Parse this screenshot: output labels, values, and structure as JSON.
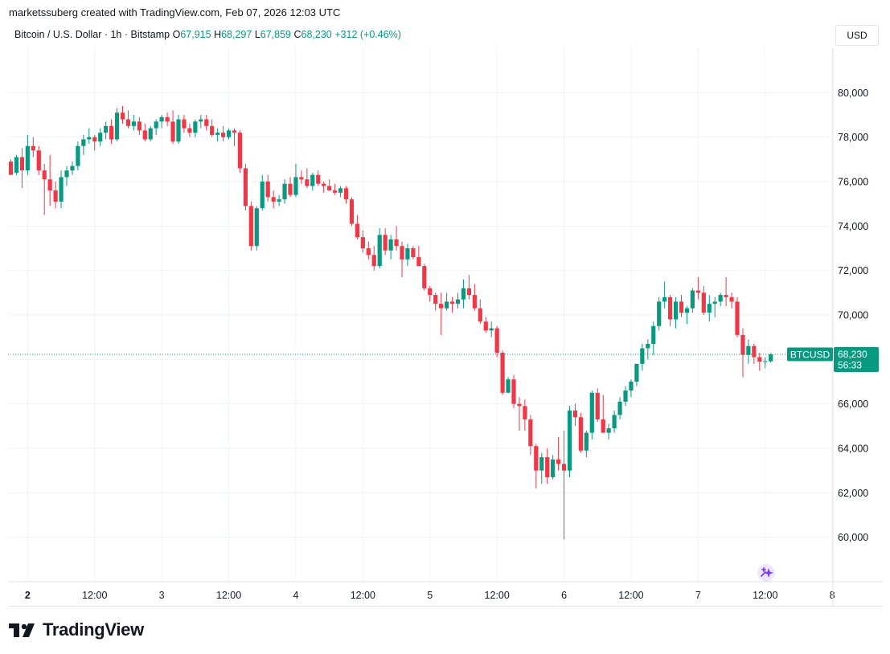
{
  "header": {
    "credit": "marketssuberg created with TradingView.com, Feb 07, 2026 12:03 UTC",
    "symbol": "Bitcoin / U.S. Dollar · 1h · Bitstamp",
    "o_label": "O",
    "o_value": "67,915",
    "h_label": "H",
    "h_value": "68,297",
    "l_label": "L",
    "l_value": "67,859",
    "c_label": "C",
    "c_value": "68,230",
    "change": "+312 (+0.46%)",
    "currency": "USD"
  },
  "price_badge": {
    "ticker": "BTCUSD",
    "price": "68,230",
    "countdown": "56:33"
  },
  "brand": {
    "name": "TradingView"
  },
  "colors": {
    "up": "#089981",
    "down": "#f23645",
    "grid": "#f0f3fa",
    "text": "#131722",
    "badge": "#089981"
  },
  "chart_data": {
    "type": "candlestick",
    "symbol": "BTCUSD",
    "interval": "1h",
    "ylim": [
      58000,
      82000
    ],
    "y_ticks": [
      60000,
      62000,
      64000,
      66000,
      68000,
      70000,
      72000,
      74000,
      76000,
      78000,
      80000
    ],
    "y_tick_labels": [
      "60,000",
      "62,000",
      "64,000",
      "66,000",
      "68,000",
      "70,000",
      "72,000",
      "74,000",
      "76,000",
      "78,000",
      "80,000"
    ],
    "x_ticks": [
      {
        "label": "2",
        "bold": true,
        "index": 3
      },
      {
        "label": "12:00",
        "bold": false,
        "index": 15
      },
      {
        "label": "3",
        "bold": false,
        "index": 27
      },
      {
        "label": "12:00",
        "bold": false,
        "index": 39
      },
      {
        "label": "4",
        "bold": false,
        "index": 51
      },
      {
        "label": "12:00",
        "bold": false,
        "index": 63
      },
      {
        "label": "5",
        "bold": false,
        "index": 75
      },
      {
        "label": "12:00",
        "bold": false,
        "index": 87
      },
      {
        "label": "6",
        "bold": false,
        "index": 99
      },
      {
        "label": "12:00",
        "bold": false,
        "index": 111
      },
      {
        "label": "7",
        "bold": false,
        "index": 123
      },
      {
        "label": "12:00",
        "bold": false,
        "index": 135
      },
      {
        "label": "8",
        "bold": false,
        "index": 147
      }
    ],
    "last_price": 68230,
    "grid": true,
    "candles": [
      [
        76900,
        77000,
        76400,
        76300
      ],
      [
        76400,
        77200,
        76300,
        77100
      ],
      [
        77100,
        77500,
        75700,
        76500
      ],
      [
        76500,
        78100,
        76300,
        77600
      ],
      [
        77600,
        78000,
        77100,
        77400
      ],
      [
        77400,
        77600,
        76300,
        76500
      ],
      [
        76500,
        76800,
        74500,
        76100
      ],
      [
        76100,
        77200,
        74900,
        75600
      ],
      [
        75600,
        76000,
        74800,
        75100
      ],
      [
        75100,
        76500,
        74800,
        76200
      ],
      [
        76200,
        76700,
        75800,
        76500
      ],
      [
        76500,
        76900,
        76300,
        76700
      ],
      [
        76700,
        77800,
        76500,
        77600
      ],
      [
        77600,
        78100,
        77200,
        77900
      ],
      [
        77900,
        78400,
        77700,
        78000
      ],
      [
        78000,
        78100,
        77400,
        77800
      ],
      [
        77800,
        78400,
        77600,
        78200
      ],
      [
        78200,
        78700,
        77900,
        78500
      ],
      [
        78500,
        78800,
        77700,
        77900
      ],
      [
        77900,
        79300,
        77800,
        79100
      ],
      [
        79100,
        79400,
        78600,
        78800
      ],
      [
        78800,
        79200,
        78400,
        78500
      ],
      [
        78500,
        79000,
        78300,
        78700
      ],
      [
        78700,
        78900,
        78100,
        78300
      ],
      [
        78300,
        78600,
        77800,
        77900
      ],
      [
        77900,
        78500,
        77800,
        78400
      ],
      [
        78400,
        78800,
        78100,
        78700
      ],
      [
        78700,
        79000,
        78400,
        78900
      ],
      [
        78900,
        79100,
        78500,
        78700
      ],
      [
        78700,
        79200,
        77700,
        77800
      ],
      [
        77800,
        79000,
        77700,
        78800
      ],
      [
        78800,
        79000,
        78200,
        78400
      ],
      [
        78400,
        78600,
        78000,
        78200
      ],
      [
        78200,
        78800,
        78000,
        78700
      ],
      [
        78700,
        79000,
        78400,
        78800
      ],
      [
        78800,
        79000,
        78300,
        78500
      ],
      [
        78500,
        78800,
        78000,
        78100
      ],
      [
        78100,
        78400,
        77800,
        78200
      ],
      [
        78200,
        78500,
        77800,
        78000
      ],
      [
        78000,
        78400,
        77900,
        78300
      ],
      [
        78300,
        78400,
        77600,
        78200
      ],
      [
        78200,
        78300,
        76400,
        76600
      ],
      [
        76600,
        76800,
        74700,
        74900
      ],
      [
        74900,
        75100,
        72900,
        73100
      ],
      [
        73100,
        74900,
        72900,
        74800
      ],
      [
        74800,
        76300,
        74700,
        76000
      ],
      [
        76000,
        76300,
        75100,
        75300
      ],
      [
        75300,
        75600,
        74800,
        75100
      ],
      [
        75100,
        75400,
        74900,
        75200
      ],
      [
        75200,
        76100,
        75000,
        75900
      ],
      [
        75900,
        76200,
        75300,
        75400
      ],
      [
        75400,
        76800,
        75300,
        76200
      ],
      [
        76200,
        76500,
        75900,
        76100
      ],
      [
        76100,
        76600,
        75700,
        75800
      ],
      [
        75800,
        76400,
        75600,
        76300
      ],
      [
        76300,
        76500,
        75800,
        75900
      ],
      [
        75900,
        76000,
        75500,
        75800
      ],
      [
        75800,
        76100,
        75600,
        75600
      ],
      [
        75600,
        75900,
        75400,
        75500
      ],
      [
        75500,
        75800,
        75300,
        75700
      ],
      [
        75700,
        75800,
        75000,
        75200
      ],
      [
        75200,
        75300,
        74000,
        74100
      ],
      [
        74100,
        74500,
        73400,
        73500
      ],
      [
        73500,
        73800,
        72800,
        73000
      ],
      [
        73000,
        73300,
        72500,
        72700
      ],
      [
        72700,
        73100,
        72000,
        72200
      ],
      [
        72200,
        73900,
        72100,
        73600
      ],
      [
        73600,
        73900,
        72700,
        72900
      ],
      [
        72900,
        73600,
        72500,
        73400
      ],
      [
        73400,
        74000,
        72900,
        73100
      ],
      [
        73100,
        73300,
        71700,
        72500
      ],
      [
        72500,
        73200,
        72200,
        73000
      ],
      [
        73000,
        73100,
        72500,
        72600
      ],
      [
        72600,
        73100,
        72300,
        72200
      ],
      [
        72200,
        72300,
        71100,
        71200
      ],
      [
        71200,
        71300,
        70600,
        70900
      ],
      [
        70900,
        71000,
        70200,
        70500
      ],
      [
        70500,
        71000,
        69100,
        70300
      ],
      [
        70300,
        71000,
        70200,
        70600
      ],
      [
        70600,
        70800,
        70100,
        70500
      ],
      [
        70500,
        71000,
        70300,
        70700
      ],
      [
        70700,
        71600,
        70300,
        71200
      ],
      [
        71200,
        71800,
        70700,
        70900
      ],
      [
        70900,
        71400,
        70200,
        70300
      ],
      [
        70300,
        70700,
        69600,
        69700
      ],
      [
        69700,
        69900,
        69200,
        69300
      ],
      [
        69300,
        69700,
        69000,
        69400
      ],
      [
        69400,
        69500,
        68100,
        68300
      ],
      [
        68300,
        68400,
        66400,
        66500
      ],
      [
        66500,
        67200,
        66500,
        67100
      ],
      [
        67100,
        67300,
        65800,
        66000
      ],
      [
        66000,
        66300,
        64800,
        65900
      ],
      [
        65900,
        66200,
        64800,
        65300
      ],
      [
        65300,
        65500,
        63700,
        64100
      ],
      [
        64100,
        64200,
        62200,
        63000
      ],
      [
        63000,
        63800,
        62400,
        63600
      ],
      [
        63600,
        64000,
        62400,
        62700
      ],
      [
        62700,
        63700,
        62600,
        63500
      ],
      [
        63500,
        64500,
        63000,
        63300
      ],
      [
        63300,
        64800,
        59900,
        63000
      ],
      [
        63000,
        65900,
        62700,
        65700
      ],
      [
        65700,
        66000,
        65000,
        65400
      ],
      [
        65400,
        65600,
        63800,
        63900
      ],
      [
        63900,
        64800,
        63600,
        64700
      ],
      [
        64700,
        66600,
        64400,
        66500
      ],
      [
        66500,
        66700,
        65200,
        65300
      ],
      [
        65300,
        66400,
        64800,
        64700
      ],
      [
        64700,
        65100,
        64400,
        64900
      ],
      [
        64900,
        65700,
        64700,
        65500
      ],
      [
        65500,
        66300,
        65300,
        66100
      ],
      [
        66100,
        66800,
        65900,
        66600
      ],
      [
        66600,
        67100,
        66300,
        67000
      ],
      [
        67000,
        67800,
        66800,
        67800
      ],
      [
        67800,
        68700,
        67500,
        68500
      ],
      [
        68500,
        68900,
        68000,
        68700
      ],
      [
        68700,
        69700,
        68200,
        69500
      ],
      [
        69500,
        70800,
        69300,
        70600
      ],
      [
        70600,
        71500,
        70300,
        70800
      ],
      [
        70800,
        70900,
        69500,
        69800
      ],
      [
        69800,
        70800,
        69400,
        70600
      ],
      [
        70600,
        70900,
        69900,
        70100
      ],
      [
        70100,
        70400,
        69600,
        70300
      ],
      [
        70300,
        71200,
        70100,
        71100
      ],
      [
        71100,
        71700,
        70700,
        71000
      ],
      [
        71000,
        71300,
        70000,
        70100
      ],
      [
        70100,
        70900,
        69700,
        70500
      ],
      [
        70500,
        70800,
        69900,
        70600
      ],
      [
        70600,
        71000,
        70400,
        70900
      ],
      [
        70900,
        71700,
        70400,
        70800
      ],
      [
        70800,
        71000,
        70300,
        70600
      ],
      [
        70600,
        70800,
        69000,
        69100
      ],
      [
        69100,
        69400,
        67200,
        68200
      ],
      [
        68200,
        68900,
        67800,
        68600
      ],
      [
        68600,
        68700,
        67800,
        68100
      ],
      [
        68100,
        68300,
        67500,
        67900
      ],
      [
        67900,
        68100,
        67600,
        67920
      ],
      [
        67915,
        68297,
        67859,
        68230
      ]
    ]
  }
}
